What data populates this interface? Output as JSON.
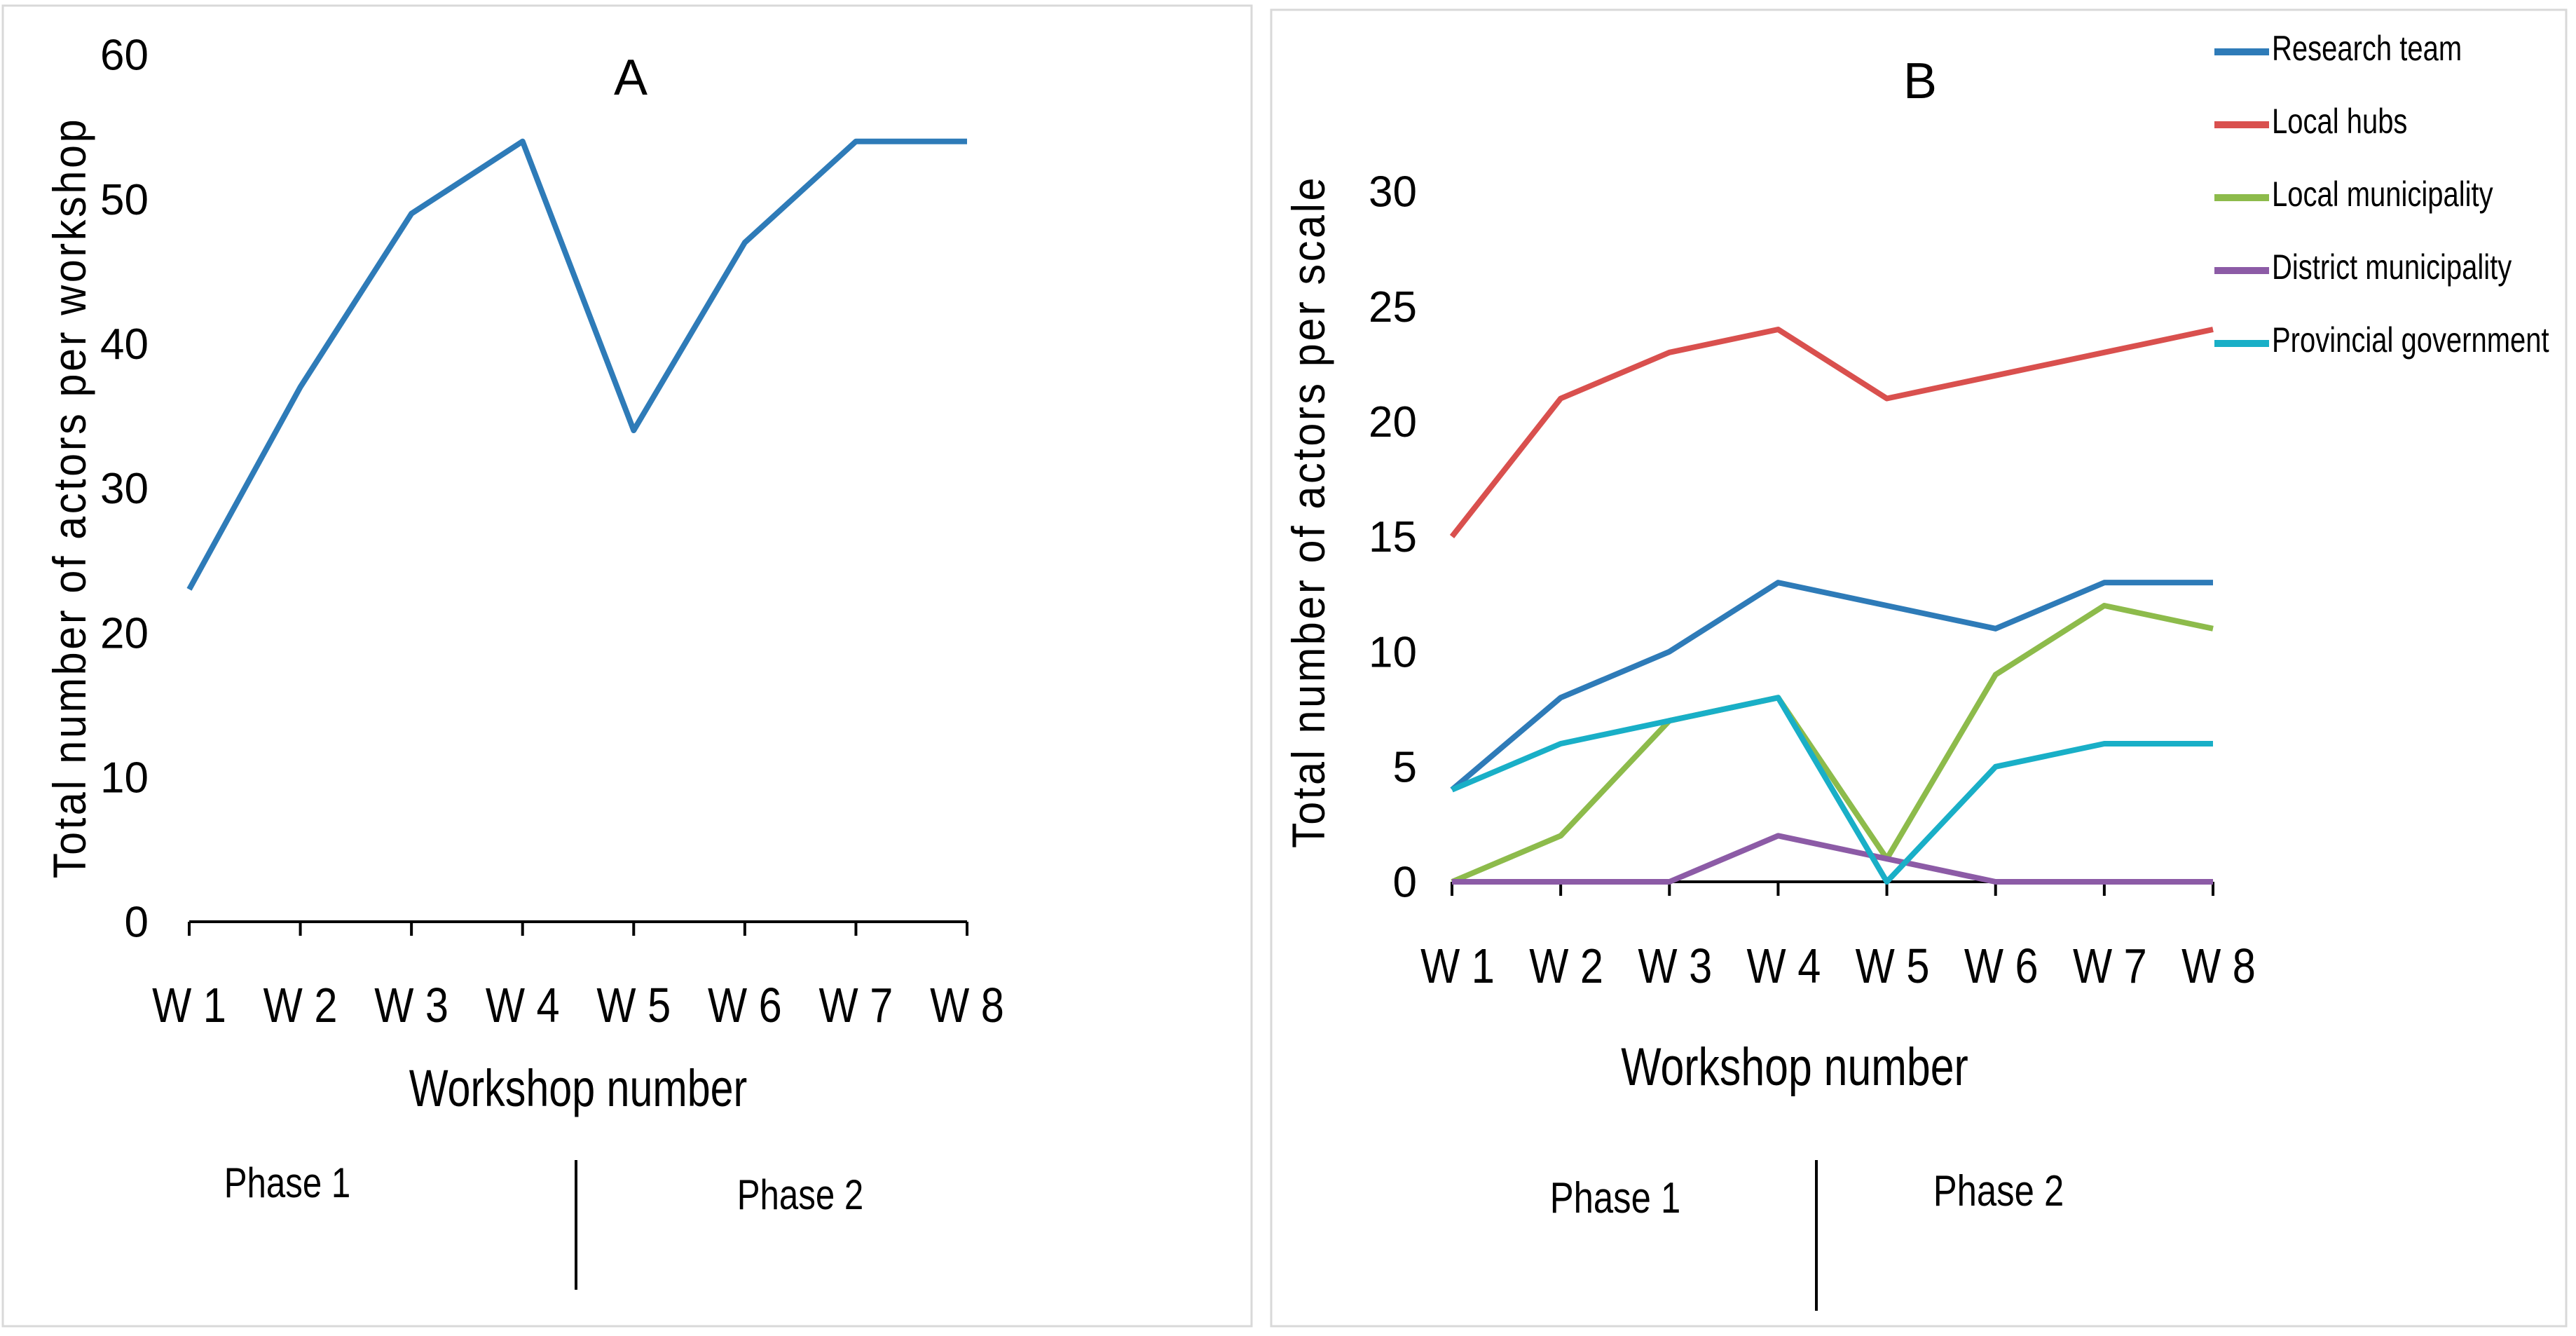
{
  "chart_data": [
    {
      "type": "line",
      "title": "A",
      "xlabel": "Workshop number",
      "ylabel": "Total number of actors per workshop",
      "categories": [
        "W 1",
        "W 2",
        "W 3",
        "W 4",
        "W 5",
        "W 6",
        "W 7",
        "W 8"
      ],
      "ylim": [
        0,
        60
      ],
      "yticks": [
        "0",
        "10",
        "20",
        "30",
        "40",
        "50",
        "60"
      ],
      "grid": false,
      "series": [
        {
          "values": [
            23,
            37,
            49,
            54,
            34,
            47,
            54,
            54
          ],
          "color": "#2E7BB8"
        }
      ],
      "phases": {
        "phase1": "Phase 1",
        "phase2": "Phase 2"
      }
    },
    {
      "type": "line",
      "title": "B",
      "xlabel": "Workshop number",
      "ylabel": "Total number of actors per scale",
      "categories": [
        "W 1",
        "W 2",
        "W 3",
        "W 4",
        "W 5",
        "W 6",
        "W 7",
        "W 8"
      ],
      "ylim": [
        0,
        30
      ],
      "yticks": [
        "0",
        "5",
        "10",
        "15",
        "20",
        "25",
        "30"
      ],
      "grid": false,
      "legend_position": "top-right",
      "series": [
        {
          "name": "Research team",
          "values": [
            4,
            8,
            10,
            13,
            12,
            11,
            13,
            13
          ],
          "color": "#2E7BB8"
        },
        {
          "name": "Local hubs",
          "values": [
            15,
            21,
            23,
            24,
            21,
            22,
            23,
            24
          ],
          "color": "#D9504E"
        },
        {
          "name": "Local municipality",
          "values": [
            0,
            2,
            7,
            8,
            1,
            9,
            12,
            11
          ],
          "color": "#8DBB4B"
        },
        {
          "name": "District municipality",
          "values": [
            0,
            0,
            0,
            2,
            1,
            0,
            0,
            0
          ],
          "color": "#8C5BA6"
        },
        {
          "name": "Provincial government",
          "values": [
            4,
            6,
            7,
            8,
            0,
            5,
            6,
            6
          ],
          "color": "#19AFC7"
        }
      ],
      "phases": {
        "phase1": "Phase 1",
        "phase2": "Phase 2"
      }
    }
  ]
}
